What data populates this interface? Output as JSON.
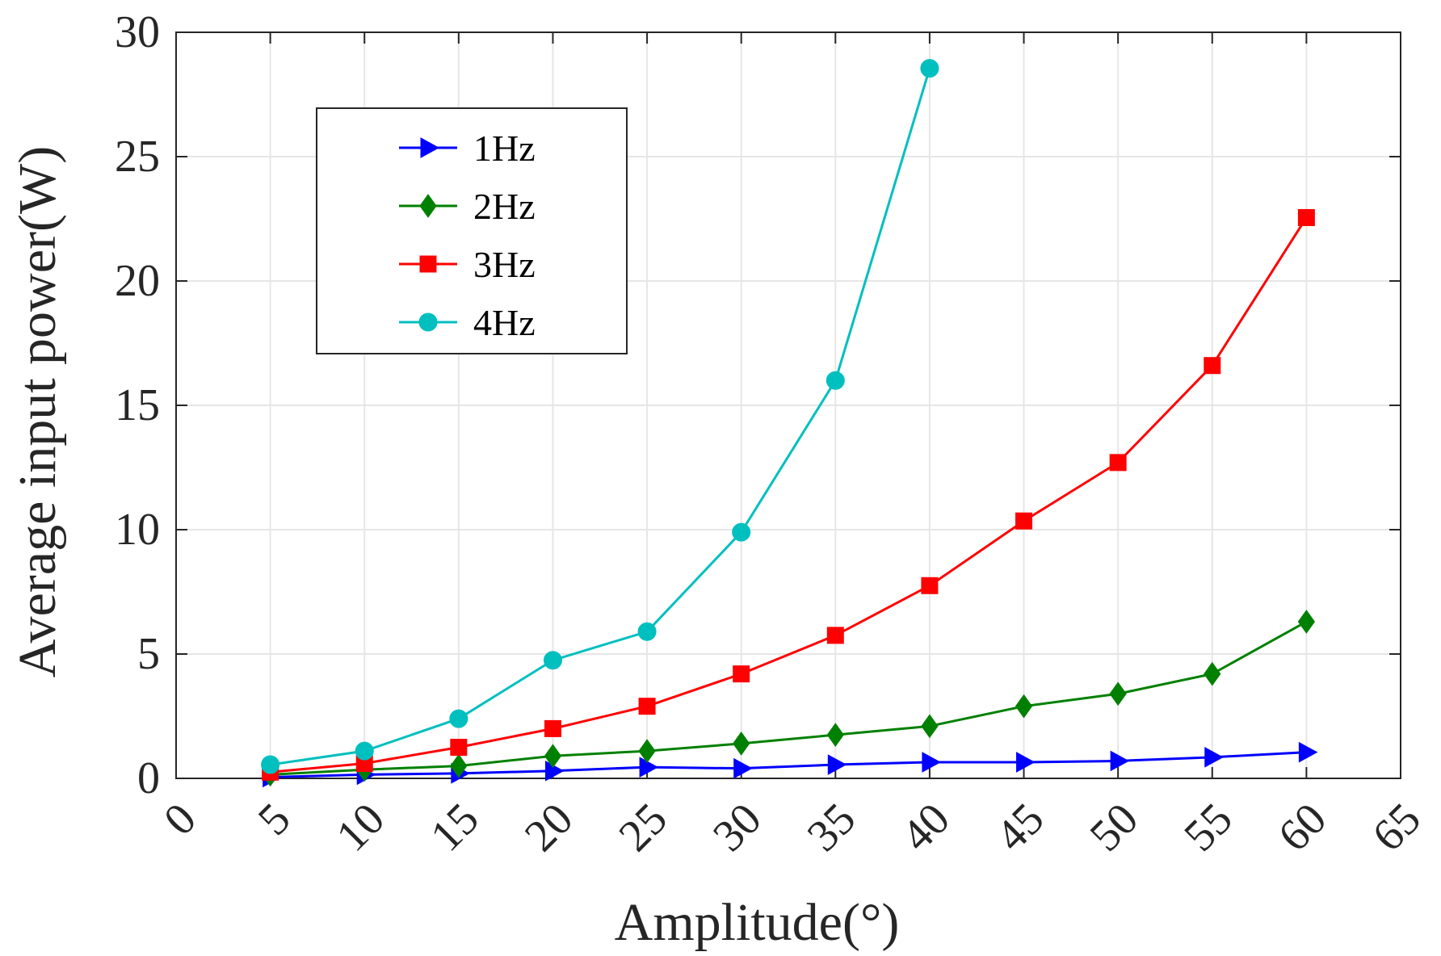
{
  "chart_data": {
    "type": "line",
    "xlabel": "Amplitude(°)",
    "ylabel": "Average input power(W)",
    "xlim": [
      0,
      65
    ],
    "ylim": [
      0,
      30
    ],
    "xticks": [
      0,
      5,
      10,
      15,
      20,
      25,
      30,
      35,
      40,
      45,
      50,
      55,
      60,
      65
    ],
    "yticks": [
      0,
      5,
      10,
      15,
      20,
      25,
      30
    ],
    "grid": true,
    "legend_position": "top-left",
    "series": [
      {
        "name": "1Hz",
        "color": "#0000ff",
        "marker": "triangle-right",
        "x": [
          5,
          10,
          15,
          20,
          25,
          30,
          35,
          40,
          45,
          50,
          55,
          60
        ],
        "y": [
          0.05,
          0.15,
          0.2,
          0.3,
          0.45,
          0.4,
          0.55,
          0.65,
          0.65,
          0.7,
          0.85,
          1.05
        ]
      },
      {
        "name": "2Hz",
        "color": "#008000",
        "marker": "diamond",
        "x": [
          5,
          10,
          15,
          20,
          25,
          30,
          35,
          40,
          45,
          50,
          55,
          60
        ],
        "y": [
          0.15,
          0.35,
          0.5,
          0.9,
          1.1,
          1.4,
          1.75,
          2.1,
          2.9,
          3.4,
          4.2,
          6.3
        ]
      },
      {
        "name": "3Hz",
        "color": "#ff0000",
        "marker": "square",
        "x": [
          5,
          10,
          15,
          20,
          25,
          30,
          35,
          40,
          45,
          50,
          55,
          60
        ],
        "y": [
          0.25,
          0.6,
          1.25,
          2.0,
          2.9,
          4.2,
          5.75,
          7.75,
          10.35,
          12.7,
          16.6,
          22.55
        ]
      },
      {
        "name": "4Hz",
        "color": "#00bfbf",
        "marker": "circle",
        "x": [
          5,
          10,
          15,
          20,
          25,
          30,
          35,
          40
        ],
        "y": [
          0.55,
          1.1,
          2.4,
          4.75,
          5.9,
          9.9,
          16.0,
          28.55
        ]
      }
    ]
  }
}
